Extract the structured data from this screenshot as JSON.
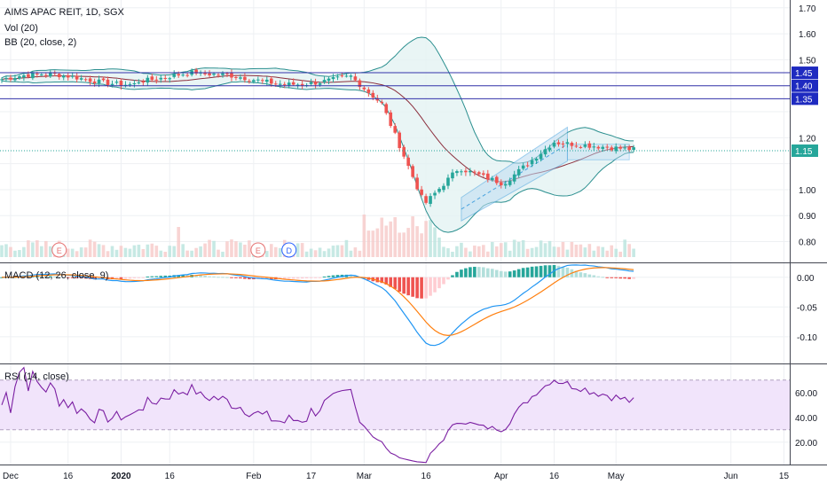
{
  "header": {
    "title": "AIMS APAC REIT, 1D, SGX",
    "vol_label": "Vol (20)",
    "bb_label": "BB (20, close, 2)",
    "macd_label": "MACD (12, 26, close, 9)",
    "rsi_label": "RSI (14, close)"
  },
  "colors": {
    "up": "#26a69a",
    "down": "#ef5350",
    "bb_band": "#2b8f8f",
    "bb_fill": "#e4f3f3",
    "bb_basis": "#8b2e3c",
    "channel_fill": "#bfdcf2",
    "channel_line": "#4aa3df",
    "level_line": "#3333aa",
    "macd_line": "#2196f3",
    "signal_line": "#ff7f0e",
    "rsi_line": "#7b1fa2",
    "rsi_band": "#f1e4fb",
    "price_tag": "#26a69a",
    "level_tag": "#1e2ac0"
  },
  "chart_data": [
    {
      "type": "candlestick",
      "panel": "price",
      "y_ticks": [
        "1.70",
        "1.60",
        "1.50",
        "1.45",
        "1.40",
        "1.35",
        "1.20",
        "1.15",
        "1.00",
        "0.90",
        "0.80"
      ],
      "ylim": [
        0.72,
        1.73
      ],
      "levels": [
        {
          "value": 1.45,
          "label": "1.45"
        },
        {
          "value": 1.4,
          "label": "1.40"
        },
        {
          "value": 1.35,
          "label": "1.35"
        }
      ],
      "last_price": {
        "value": 1.15,
        "label": "1.15"
      },
      "events": [
        {
          "label": "E",
          "date_index": 13
        },
        {
          "label": "E",
          "date_index": 58
        },
        {
          "label": "D",
          "date_index": 65
        }
      ]
    },
    {
      "type": "line",
      "panel": "macd",
      "y_ticks": [
        "0.00",
        "-0.05",
        "-0.10"
      ],
      "ylim": [
        -0.145,
        0.022
      ]
    },
    {
      "type": "line",
      "panel": "rsi",
      "y_ticks": [
        "60.00",
        "40.00",
        "20.00"
      ],
      "ylim": [
        2,
        82
      ],
      "band": [
        30,
        70
      ]
    }
  ],
  "x_axis": {
    "labels": [
      {
        "text": "Dec",
        "bold": false
      },
      {
        "text": "16",
        "bold": false
      },
      {
        "text": "2020",
        "bold": true
      },
      {
        "text": "16",
        "bold": false
      },
      {
        "text": "Feb",
        "bold": false
      },
      {
        "text": "17",
        "bold": false
      },
      {
        "text": "Mar",
        "bold": false
      },
      {
        "text": "16",
        "bold": false
      },
      {
        "text": "Apr",
        "bold": false
      },
      {
        "text": "16",
        "bold": false
      },
      {
        "text": "May",
        "bold": false
      },
      {
        "text": "Jun",
        "bold": false
      },
      {
        "text": "15",
        "bold": false
      }
    ]
  }
}
